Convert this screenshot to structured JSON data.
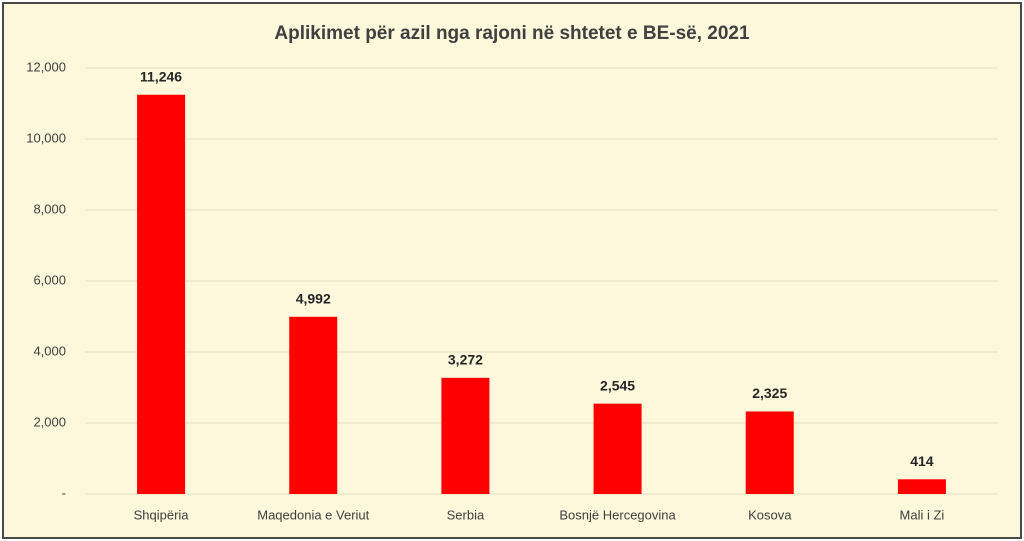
{
  "chart_data": {
    "type": "bar",
    "title": "Aplikimet për azil nga rajoni në shtetet e BE-së,  2021",
    "categories": [
      "Shqipëria",
      "Maqedonia e Veriut",
      "Serbia",
      "Bosnjë Hercegovina",
      "Kosova",
      "Mali i Zi"
    ],
    "values": [
      11246,
      4992,
      3272,
      2545,
      2325,
      414
    ],
    "value_labels": [
      "11,246",
      "4,992",
      "3,272",
      "2,545",
      "2,325",
      "414"
    ],
    "color": "#ff0000",
    "ylim": [
      0,
      12000
    ],
    "yticks": [
      {
        "value": 0,
        "label": "-"
      },
      {
        "value": 2000,
        "label": "2,000"
      },
      {
        "value": 4000,
        "label": "4,000"
      },
      {
        "value": 6000,
        "label": "6,000"
      },
      {
        "value": 8000,
        "label": "8,000"
      },
      {
        "value": 10000,
        "label": "10,000"
      },
      {
        "value": 12000,
        "label": "12,000"
      }
    ],
    "grid": true
  }
}
